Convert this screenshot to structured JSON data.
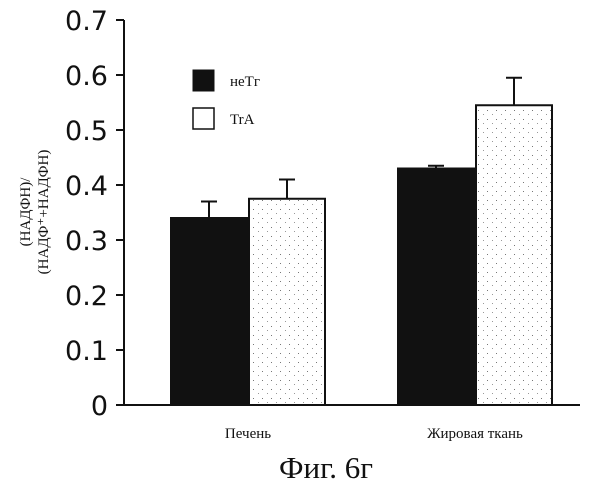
{
  "chart_data": {
    "type": "bar",
    "title": "",
    "caption": "Фиг. 6г",
    "ylabel_line1": "(НАДФН)/",
    "ylabel_line2": "(НАДФ⁺+НАДФН)",
    "xlabel": "",
    "categories": [
      "Печень",
      "Жировая ткань"
    ],
    "series": [
      {
        "name": "неТг",
        "values": [
          0.34,
          0.43
        ],
        "errors": [
          0.03,
          0.005
        ],
        "color": "#111111"
      },
      {
        "name": "TrA",
        "values": [
          0.375,
          0.545
        ],
        "errors": [
          0.035,
          0.05
        ],
        "color": "#ffffff"
      }
    ],
    "ylim": [
      0,
      0.7
    ],
    "yticks": [
      "0",
      "0.1",
      "0.2",
      "0.3",
      "0.4",
      "0.5",
      "0.6",
      "0.7"
    ],
    "legend_position": "top-left",
    "grid": false
  }
}
